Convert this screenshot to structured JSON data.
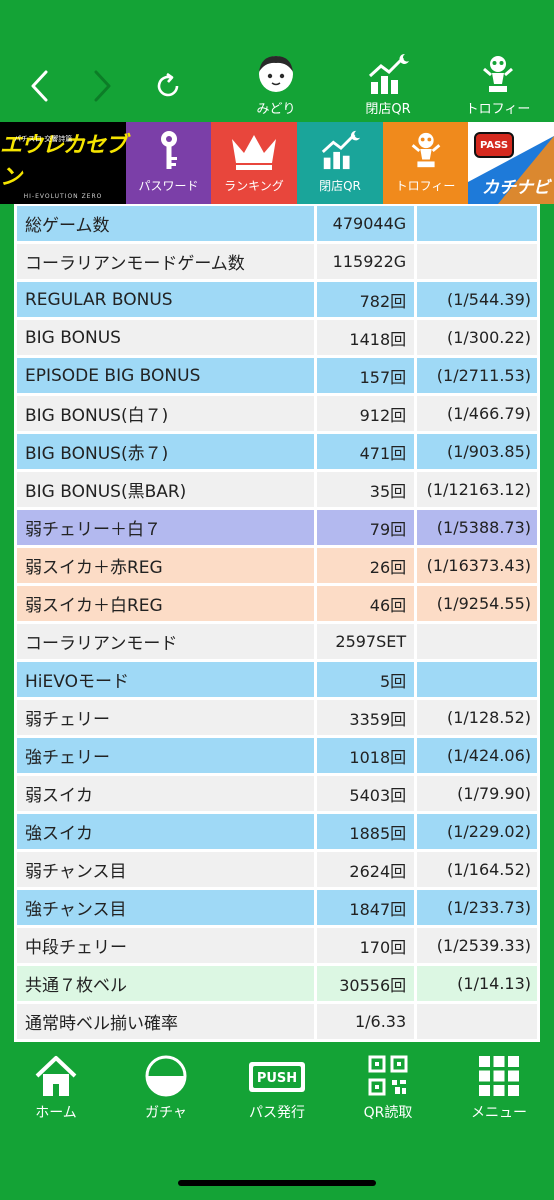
{
  "toolbar": {
    "back_icon": "chevron-left-icon",
    "forward_icon": "chevron-right-icon",
    "reload_icon": "reload-icon",
    "items": [
      {
        "label": "みどり",
        "icon": "character-face-icon"
      },
      {
        "label": "閉店QR",
        "icon": "chart-qr-icon"
      },
      {
        "label": "トロフィー",
        "icon": "trophy-figure-icon"
      }
    ]
  },
  "categories": {
    "logo": {
      "top": "パチスロ 交響詩篇",
      "title": "エウレカセブン",
      "sub": "HI-EVOLUTION ZERO"
    },
    "items": [
      {
        "label": "パスワード",
        "icon": "key-icon",
        "color": "#7b3fa8"
      },
      {
        "label": "ランキング",
        "icon": "crown-icon",
        "color": "#e8463c"
      },
      {
        "label": "閉店QR",
        "icon": "chart-qr-icon",
        "color": "#1aa59a"
      },
      {
        "label": "トロフィー",
        "icon": "trophy-figure-icon",
        "color": "#f08a1c"
      }
    ],
    "pass_badge": "PASS",
    "brand": "カチナビ"
  },
  "stats": [
    {
      "name": "総ゲーム数",
      "value": "479044G",
      "prob": "",
      "style": "blue"
    },
    {
      "name": "コーラリアンモードゲーム数",
      "value": "115922G",
      "prob": "",
      "style": "gray"
    },
    {
      "name": "REGULAR BONUS",
      "value": "782回",
      "prob": "(1/544.39)",
      "style": "blue"
    },
    {
      "name": "BIG BONUS",
      "value": "1418回",
      "prob": "(1/300.22)",
      "style": "gray"
    },
    {
      "name": "EPISODE BIG BONUS",
      "value": "157回",
      "prob": "(1/2711.53)",
      "style": "blue"
    },
    {
      "name": "BIG BONUS(白７)",
      "value": "912回",
      "prob": "(1/466.79)",
      "style": "gray"
    },
    {
      "name": "BIG BONUS(赤７)",
      "value": "471回",
      "prob": "(1/903.85)",
      "style": "blue"
    },
    {
      "name": "BIG BONUS(黒BAR)",
      "value": "35回",
      "prob": "(1/12163.12)",
      "style": "gray"
    },
    {
      "name": "弱チェリー＋白７",
      "value": "79回",
      "prob": "(1/5388.73)",
      "style": "purple"
    },
    {
      "name": "弱スイカ＋赤REG",
      "value": "26回",
      "prob": "(1/16373.43)",
      "style": "peach"
    },
    {
      "name": "弱スイカ＋白REG",
      "value": "46回",
      "prob": "(1/9254.55)",
      "style": "peach"
    },
    {
      "name": "コーラリアンモード",
      "value": "2597SET",
      "prob": "",
      "style": "gray"
    },
    {
      "name": "HiEVOモード",
      "value": "5回",
      "prob": "",
      "style": "blue"
    },
    {
      "name": "弱チェリー",
      "value": "3359回",
      "prob": "(1/128.52)",
      "style": "gray"
    },
    {
      "name": "強チェリー",
      "value": "1018回",
      "prob": "(1/424.06)",
      "style": "blue"
    },
    {
      "name": "弱スイカ",
      "value": "5403回",
      "prob": "(1/79.90)",
      "style": "gray"
    },
    {
      "name": "強スイカ",
      "value": "1885回",
      "prob": "(1/229.02)",
      "style": "blue"
    },
    {
      "name": "弱チャンス目",
      "value": "2624回",
      "prob": "(1/164.52)",
      "style": "gray"
    },
    {
      "name": "強チャンス目",
      "value": "1847回",
      "prob": "(1/233.73)",
      "style": "blue"
    },
    {
      "name": "中段チェリー",
      "value": "170回",
      "prob": "(1/2539.33)",
      "style": "gray"
    },
    {
      "name": "共通７枚ベル",
      "value": "30556回",
      "prob": "(1/14.13)",
      "style": "mint"
    },
    {
      "name": "通常時ベル揃い確率",
      "value": "1/6.33",
      "prob": "",
      "style": "gray"
    }
  ],
  "bottom_nav": [
    {
      "label": "ホーム",
      "icon": "home-icon"
    },
    {
      "label": "ガチャ",
      "icon": "gacha-ball-icon"
    },
    {
      "label": "パス発行",
      "icon": "push-badge-icon",
      "badge": "PUSH"
    },
    {
      "label": "QR読取",
      "icon": "qr-code-icon"
    },
    {
      "label": "メニュー",
      "icon": "grid-menu-icon"
    }
  ],
  "colors": {
    "brand_green": "#14a336",
    "row_blue": "#9fd9f6",
    "row_gray": "#f0f0f0",
    "row_purple": "#b3b9ef",
    "row_peach": "#fcdcc6",
    "row_mint": "#dcf7e3"
  }
}
